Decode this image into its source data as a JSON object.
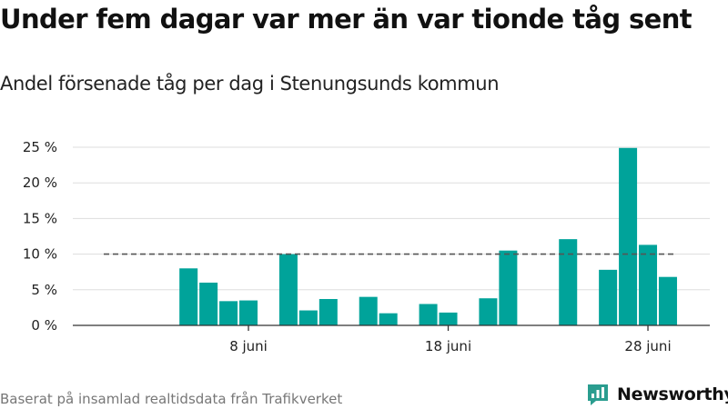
{
  "title": "Under fem dagar var mer än var tionde tåg sent",
  "subtitle": "Andel försenade tåg per dag i Stenungsunds kommun",
  "footer": "Baserat på insamlad realtidsdata från Trafikverket",
  "brand": {
    "name": "Newsworthy",
    "icon": "newsworthy-logo-icon"
  },
  "colors": {
    "bar": "#00a39a",
    "reference_line": "#555555",
    "grid": "#dddddd",
    "axis": "#333333",
    "text": "#111111",
    "footer_text": "#777777"
  },
  "chart_data": {
    "type": "bar",
    "title": "Under fem dagar var mer än var tionde tåg sent",
    "subtitle": "Andel försenade tåg per dag i Stenungsunds kommun",
    "xlabel": "",
    "ylabel": "",
    "x_unit": "day of June",
    "x": [
      1,
      2,
      3,
      4,
      5,
      6,
      7,
      8,
      9,
      10,
      11,
      12,
      13,
      14,
      15,
      16,
      17,
      18,
      19,
      20,
      21,
      22,
      23,
      24,
      25,
      26,
      27,
      28,
      29,
      30
    ],
    "values": [
      null,
      null,
      null,
      0,
      8.0,
      6.0,
      3.4,
      3.5,
      0,
      10.0,
      2.1,
      3.7,
      null,
      4.0,
      1.7,
      null,
      3.0,
      1.8,
      0,
      3.8,
      10.5,
      null,
      null,
      12.1,
      null,
      7.8,
      24.9,
      11.3,
      6.8,
      null
    ],
    "x_ticks": [
      8,
      18,
      28
    ],
    "x_tick_labels": [
      "8 juni",
      "18 juni",
      "28 juni"
    ],
    "y_ticks": [
      0,
      5,
      10,
      15,
      20,
      25
    ],
    "y_tick_labels": [
      "0 %",
      "5 %",
      "10 %",
      "15 %",
      "20 %",
      "25 %"
    ],
    "ylim": [
      0,
      25
    ],
    "xlim": [
      0.5,
      30.5
    ],
    "reference_line": {
      "y": 10,
      "x_from": 0.5,
      "x_to": 30.5,
      "style": "dashed"
    },
    "grid": true,
    "legend": "none"
  }
}
